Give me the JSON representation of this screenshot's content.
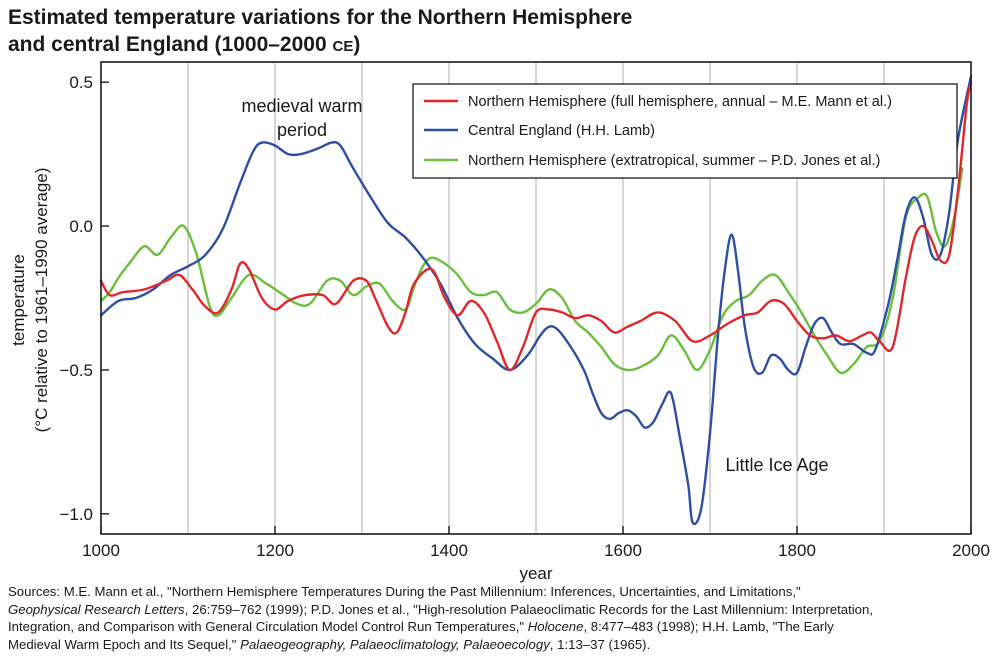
{
  "title_line1": "Estimated temperature variations for the Northern Hemisphere",
  "title_line2": "and central England (1000–2000",
  "title_era": "CE",
  "title_end": ")",
  "chart_data": {
    "type": "line",
    "title": "Estimated temperature variations for the Northern Hemisphere and central England (1000–2000 CE)",
    "xlabel": "year",
    "ylabel_line1": "temperature",
    "ylabel_line2": "(°C relative to 1961–1990 average)",
    "xlim": [
      1000,
      2000
    ],
    "ylim": [
      -1.07,
      0.57
    ],
    "x_ticks": [
      1000,
      1200,
      1400,
      1600,
      1800,
      2000
    ],
    "x_tick_labels": [
      "1000",
      "1200",
      "1400",
      "1600",
      "1800",
      "2000"
    ],
    "y_ticks": [
      0.5,
      0.0,
      -0.5,
      -1.0
    ],
    "y_tick_labels": [
      "0.5",
      "0.0",
      "−0.5",
      "−1.0"
    ],
    "vertical_gridlines": [
      1100,
      1200,
      1300,
      1400,
      1500,
      1600,
      1700,
      1800,
      1900
    ],
    "legend_position": "top-right",
    "annotations": [
      {
        "text": "medieval warm",
        "x": 1200,
        "y": 0.42
      },
      {
        "text": "period",
        "x": 1200,
        "y": 0.34
      },
      {
        "text": "Little Ice Age",
        "x": 1750,
        "y": -0.84
      }
    ],
    "series": [
      {
        "name": "Northern Hemisphere (full hemisphere, annual – M.E. Mann et al.)",
        "color": "#e0282c",
        "x": [
          1000,
          1010,
          1025,
          1050,
          1075,
          1090,
          1105,
          1120,
          1135,
          1150,
          1160,
          1170,
          1185,
          1200,
          1215,
          1235,
          1255,
          1270,
          1290,
          1305,
          1315,
          1330,
          1340,
          1350,
          1360,
          1380,
          1395,
          1410,
          1425,
          1440,
          1455,
          1470,
          1485,
          1500,
          1515,
          1530,
          1545,
          1560,
          1575,
          1590,
          1605,
          1620,
          1640,
          1660,
          1680,
          1700,
          1720,
          1740,
          1755,
          1770,
          1785,
          1800,
          1815,
          1830,
          1845,
          1860,
          1875,
          1885,
          1895,
          1910,
          1925,
          1935,
          1945,
          1955,
          1965,
          1975,
          1985,
          1995,
          2000
        ],
        "y": [
          -0.19,
          -0.24,
          -0.23,
          -0.22,
          -0.19,
          -0.17,
          -0.22,
          -0.28,
          -0.3,
          -0.22,
          -0.13,
          -0.15,
          -0.25,
          -0.29,
          -0.26,
          -0.24,
          -0.24,
          -0.27,
          -0.19,
          -0.19,
          -0.25,
          -0.35,
          -0.37,
          -0.3,
          -0.2,
          -0.15,
          -0.25,
          -0.31,
          -0.26,
          -0.3,
          -0.4,
          -0.5,
          -0.42,
          -0.3,
          -0.29,
          -0.3,
          -0.32,
          -0.31,
          -0.33,
          -0.37,
          -0.35,
          -0.33,
          -0.3,
          -0.33,
          -0.4,
          -0.38,
          -0.34,
          -0.31,
          -0.3,
          -0.26,
          -0.27,
          -0.33,
          -0.38,
          -0.39,
          -0.38,
          -0.4,
          -0.38,
          -0.37,
          -0.4,
          -0.42,
          -0.18,
          -0.04,
          0.0,
          -0.05,
          -0.12,
          -0.1,
          0.12,
          0.42,
          0.5
        ]
      },
      {
        "name": "Central England (H.H. Lamb)",
        "color": "#2e4fa3",
        "x": [
          1000,
          1020,
          1040,
          1060,
          1080,
          1100,
          1120,
          1140,
          1160,
          1175,
          1185,
          1200,
          1215,
          1230,
          1250,
          1265,
          1275,
          1290,
          1310,
          1330,
          1350,
          1370,
          1390,
          1410,
          1430,
          1450,
          1470,
          1490,
          1505,
          1515,
          1525,
          1540,
          1555,
          1565,
          1575,
          1585,
          1595,
          1605,
          1615,
          1625,
          1635,
          1645,
          1655,
          1665,
          1675,
          1680,
          1690,
          1700,
          1710,
          1718,
          1725,
          1732,
          1740,
          1750,
          1760,
          1770,
          1780,
          1790,
          1800,
          1810,
          1820,
          1830,
          1840,
          1850,
          1865,
          1880,
          1890,
          1905,
          1915,
          1925,
          1935,
          1945,
          1955,
          1965,
          1975,
          1985,
          2000
        ],
        "y": [
          -0.31,
          -0.26,
          -0.25,
          -0.22,
          -0.17,
          -0.14,
          -0.1,
          -0.01,
          0.15,
          0.26,
          0.29,
          0.28,
          0.25,
          0.25,
          0.27,
          0.29,
          0.28,
          0.2,
          0.1,
          0.01,
          -0.04,
          -0.11,
          -0.2,
          -0.32,
          -0.41,
          -0.46,
          -0.5,
          -0.45,
          -0.38,
          -0.35,
          -0.36,
          -0.42,
          -0.5,
          -0.58,
          -0.65,
          -0.67,
          -0.65,
          -0.64,
          -0.66,
          -0.7,
          -0.68,
          -0.62,
          -0.58,
          -0.73,
          -0.9,
          -1.03,
          -0.98,
          -0.72,
          -0.35,
          -0.13,
          -0.03,
          -0.15,
          -0.35,
          -0.49,
          -0.51,
          -0.45,
          -0.46,
          -0.5,
          -0.51,
          -0.42,
          -0.34,
          -0.32,
          -0.37,
          -0.41,
          -0.41,
          -0.44,
          -0.43,
          -0.27,
          -0.12,
          0.04,
          0.1,
          0.03,
          -0.1,
          -0.1,
          0.05,
          0.3,
          0.52
        ]
      },
      {
        "name": "Northern Hemisphere (extratropical, summer – P.D. Jones et al.)",
        "color": "#6bbf3e",
        "x": [
          1000,
          1010,
          1020,
          1035,
          1050,
          1065,
          1080,
          1095,
          1110,
          1125,
          1135,
          1150,
          1170,
          1190,
          1210,
          1225,
          1240,
          1260,
          1275,
          1290,
          1305,
          1320,
          1335,
          1350,
          1360,
          1370,
          1380,
          1395,
          1410,
          1425,
          1440,
          1455,
          1470,
          1485,
          1500,
          1515,
          1530,
          1545,
          1560,
          1575,
          1590,
          1605,
          1620,
          1640,
          1655,
          1670,
          1685,
          1700,
          1715,
          1730,
          1745,
          1760,
          1775,
          1790,
          1805,
          1820,
          1835,
          1850,
          1865,
          1880,
          1895,
          1910,
          1925,
          1940,
          1950,
          1960,
          1970,
          1980,
          1990
        ],
        "y": [
          -0.26,
          -0.23,
          -0.18,
          -0.12,
          -0.07,
          -0.1,
          -0.04,
          0.0,
          -0.1,
          -0.28,
          -0.31,
          -0.25,
          -0.17,
          -0.2,
          -0.24,
          -0.27,
          -0.27,
          -0.19,
          -0.19,
          -0.24,
          -0.21,
          -0.2,
          -0.26,
          -0.29,
          -0.21,
          -0.14,
          -0.11,
          -0.13,
          -0.17,
          -0.23,
          -0.24,
          -0.23,
          -0.29,
          -0.3,
          -0.27,
          -0.22,
          -0.25,
          -0.33,
          -0.37,
          -0.42,
          -0.48,
          -0.5,
          -0.49,
          -0.45,
          -0.38,
          -0.43,
          -0.5,
          -0.43,
          -0.31,
          -0.26,
          -0.24,
          -0.19,
          -0.17,
          -0.23,
          -0.3,
          -0.38,
          -0.45,
          -0.51,
          -0.48,
          -0.42,
          -0.4,
          -0.25,
          0.03,
          0.1,
          0.1,
          -0.02,
          -0.07,
          0.02,
          0.2
        ]
      }
    ]
  },
  "sources": {
    "line1": "Sources: M.E. Mann et al., \"Northern Hemisphere Temperatures During the Past Millennium: Inferences, Uncertainties, and Limitations,\"",
    "line2_journal": "Geophysical Research Letters",
    "line2_rest": ", 26:759–762 (1999); P.D. Jones et al., \"High-resolution Palaeoclimatic Records for the Last Millennium: Interpretation,",
    "line3_pre": "Integration, and Comparison with General Circulation Model Control Run Temperatures,\" ",
    "line3_journal": "Holocene",
    "line3_rest": ", 8:477–483 (1998); H.H. Lamb, \"The Early",
    "line4_pre": "Medieval Warm Epoch and Its Sequel,\" ",
    "line4_journal": "Palaeogeography, Palaeoclimatology, Palaeoecology",
    "line4_rest": ", 1:13–37 (1965)."
  }
}
